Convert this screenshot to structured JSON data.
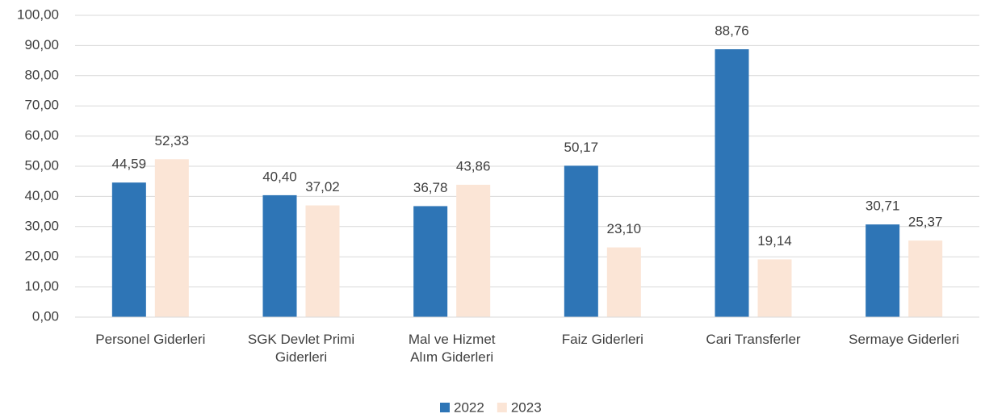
{
  "chart_data": {
    "type": "bar",
    "categories": [
      "Personel Giderleri",
      "SGK Devlet Primi\nGiderleri",
      "Mal ve Hizmet\nAlım Giderleri",
      "Faiz Giderleri",
      "Cari Transferler",
      "Sermaye Giderleri"
    ],
    "series": [
      {
        "name": "2022",
        "color": "#2e75b6",
        "values": [
          44.59,
          40.4,
          36.78,
          50.17,
          88.76,
          30.71
        ],
        "value_labels": [
          "44,59",
          "40,40",
          "36,78",
          "50,17",
          "88,76",
          "30,71"
        ]
      },
      {
        "name": "2023",
        "color": "#fbe5d6",
        "values": [
          52.33,
          37.02,
          43.86,
          23.1,
          19.14,
          25.37
        ],
        "value_labels": [
          "52,33",
          "37,02",
          "43,86",
          "23,10",
          "19,14",
          "25,37"
        ]
      }
    ],
    "ylim": [
      0,
      100
    ],
    "yticks": [
      {
        "value": 0,
        "label": "0,00"
      },
      {
        "value": 10,
        "label": "10,00"
      },
      {
        "value": 20,
        "label": "20,00"
      },
      {
        "value": 30,
        "label": "30,00"
      },
      {
        "value": 40,
        "label": "40,00"
      },
      {
        "value": 50,
        "label": "50,00"
      },
      {
        "value": 60,
        "label": "60,00"
      },
      {
        "value": 70,
        "label": "70,00"
      },
      {
        "value": 80,
        "label": "80,00"
      },
      {
        "value": 90,
        "label": "90,00"
      },
      {
        "value": 100,
        "label": "100,00"
      }
    ],
    "grid": true,
    "legend": "bottom"
  }
}
